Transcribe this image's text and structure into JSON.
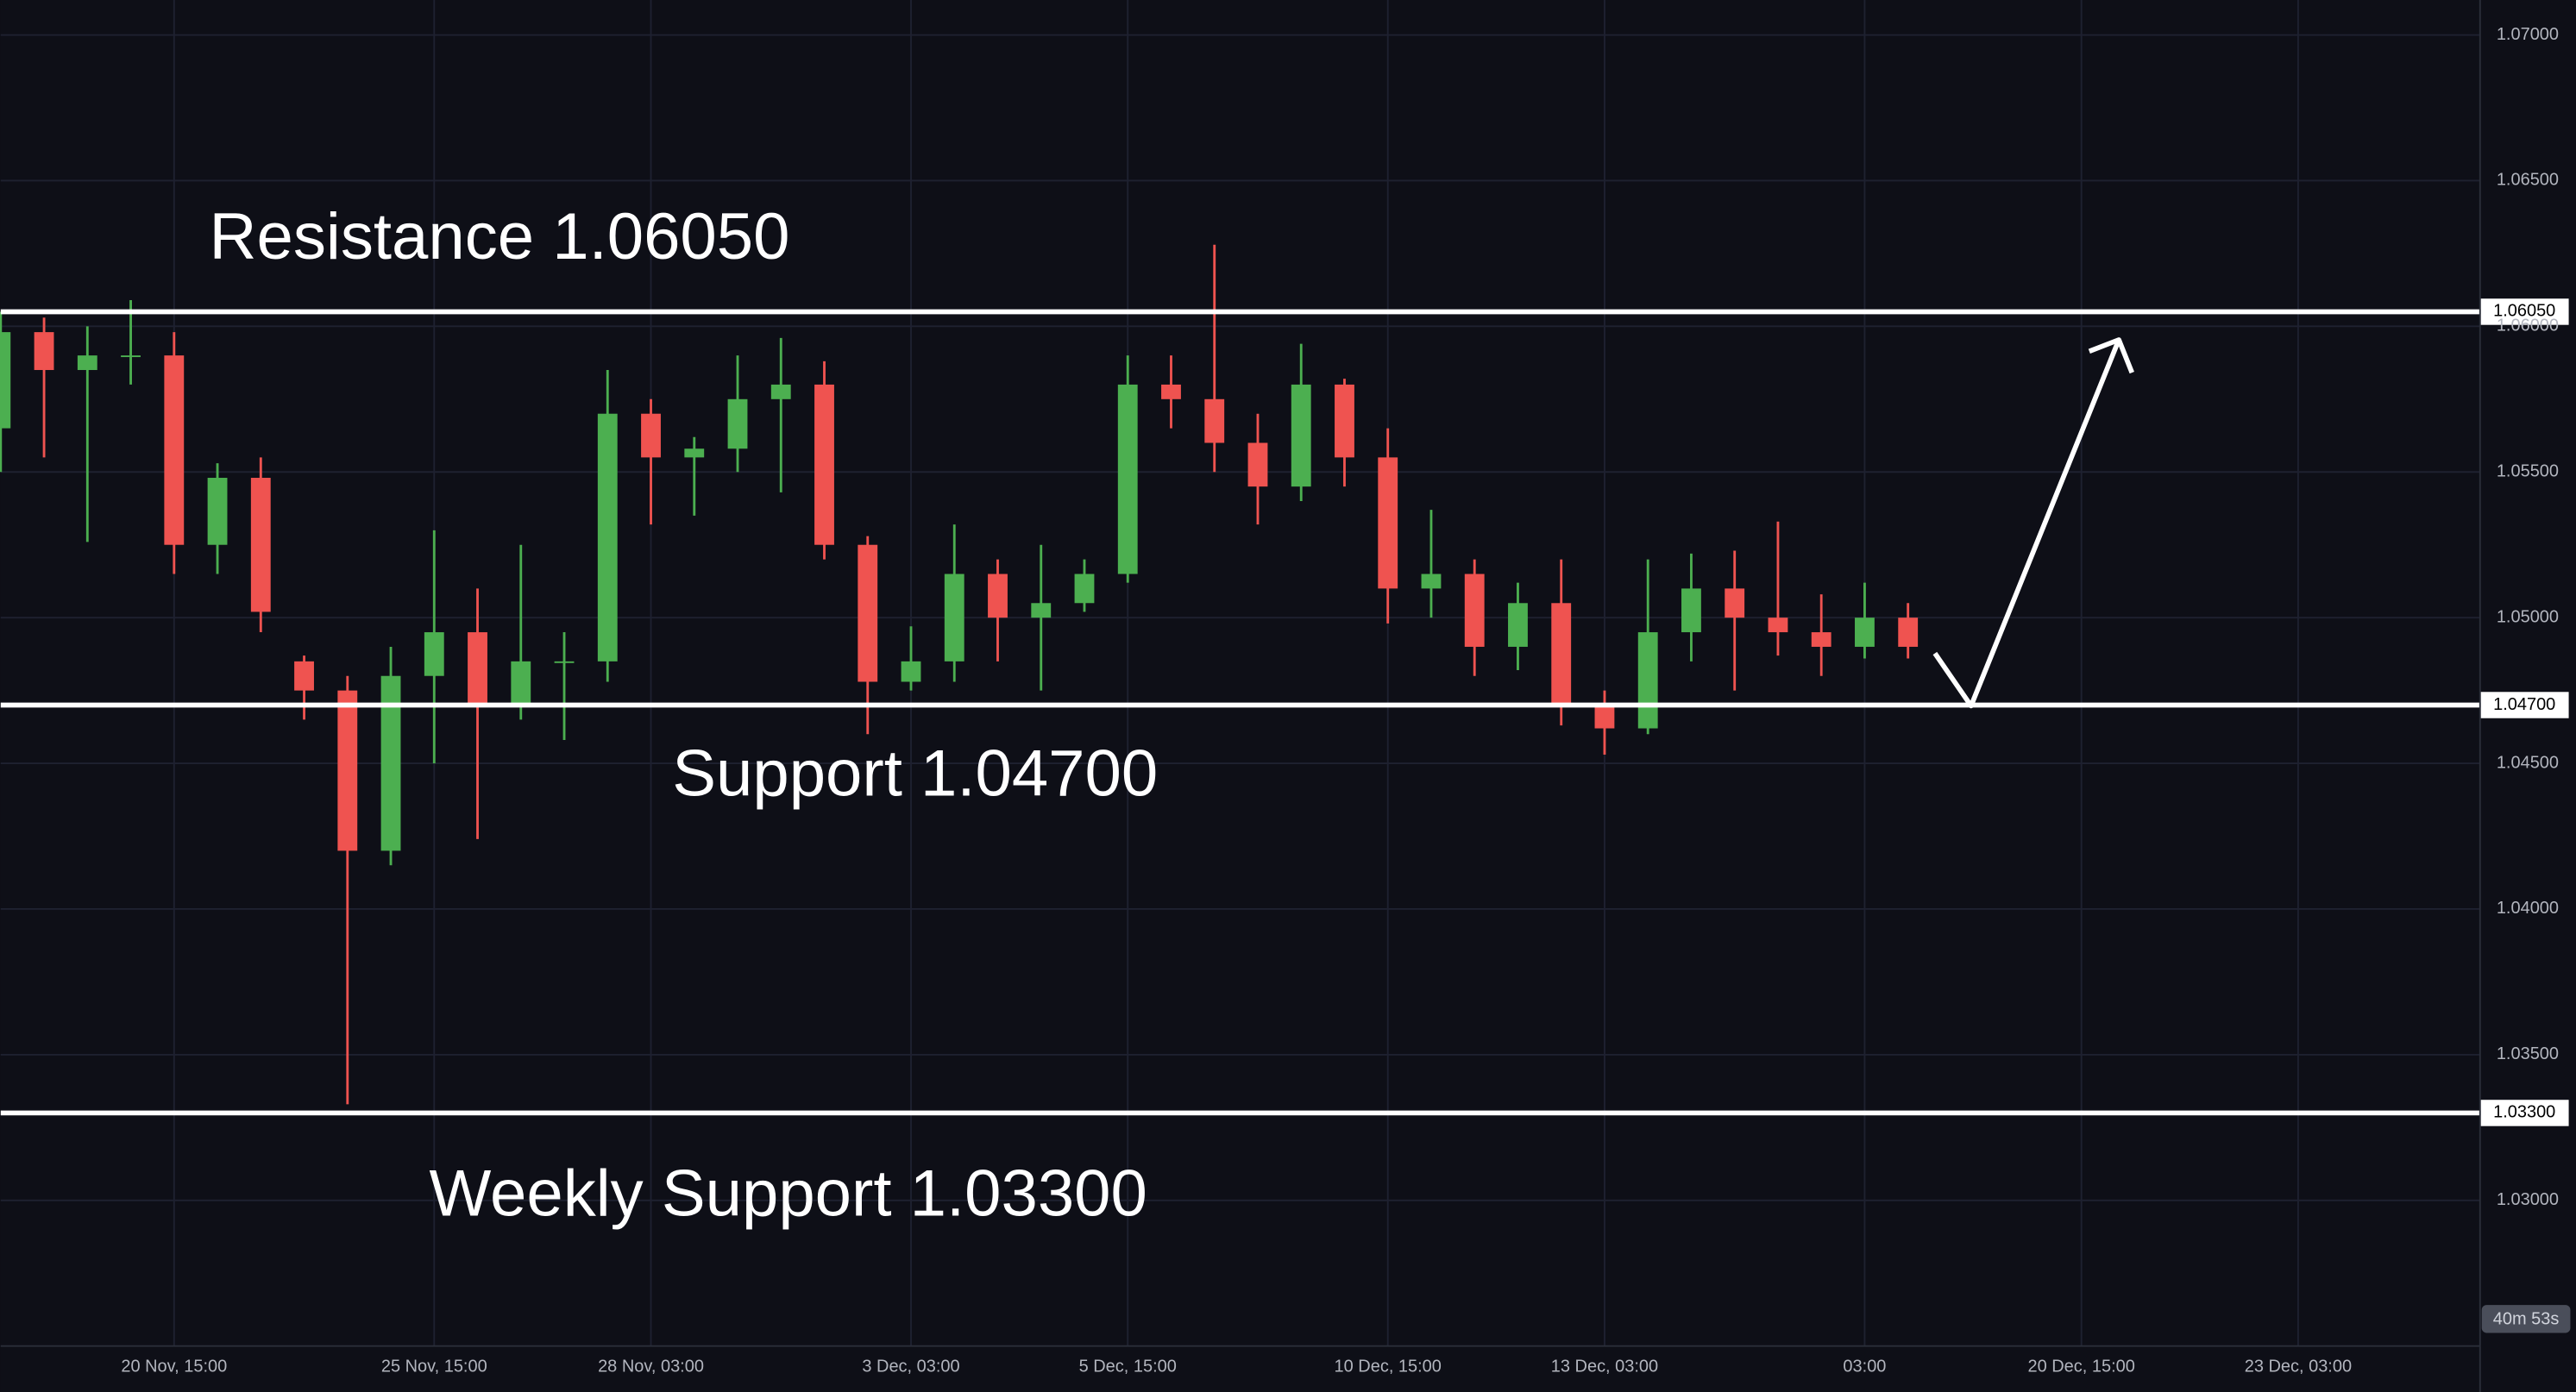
{
  "chart_data": {
    "type": "candlestick",
    "categories": [
      null,
      null,
      null,
      null,
      "20 Nov, 15:00",
      null,
      null,
      null,
      null,
      null,
      "25 Nov, 15:00",
      null,
      null,
      null,
      null,
      "28 Nov, 03:00",
      null,
      null,
      null,
      null,
      null,
      "3 Dec, 03:00",
      null,
      null,
      null,
      null,
      "5 Dec, 15:00",
      null,
      null,
      null,
      null,
      null,
      "10 Dec, 15:00",
      null,
      null,
      null,
      null,
      "13 Dec, 03:00",
      null,
      null,
      null,
      null,
      null,
      "03:00",
      null,
      null,
      null,
      null,
      "20 Dec, 15:00",
      null,
      null,
      null,
      null,
      "23 Dec, 03:00",
      null,
      null,
      null,
      null
    ],
    "open": [
      1.0565,
      1.0598,
      1.0585,
      1.059,
      1.059,
      1.0525,
      1.0548,
      1.0485,
      1.0475,
      1.042,
      1.048,
      1.0495,
      1.047,
      1.0485,
      1.0485,
      1.057,
      1.0555,
      1.0558,
      1.0575,
      1.058,
      1.0525,
      1.0478,
      1.0485,
      1.0515,
      1.05,
      1.0505,
      1.0515,
      1.058,
      1.0575,
      1.056,
      1.0545,
      1.058,
      1.0555,
      1.051,
      1.0515,
      1.049,
      1.0505,
      1.047,
      1.0462,
      1.0495,
      1.051,
      1.05,
      1.0495,
      1.049,
      1.05,
      null,
      null,
      null,
      null,
      null,
      null,
      null,
      null,
      null,
      null,
      null,
      null,
      null
    ],
    "high": [
      1.0605,
      1.0603,
      1.06,
      1.0609,
      1.0598,
      1.0553,
      1.0555,
      1.0487,
      1.048,
      1.049,
      1.053,
      1.051,
      1.0525,
      1.0495,
      1.0585,
      1.0575,
      1.0562,
      1.059,
      1.0596,
      1.0588,
      1.0528,
      1.0497,
      1.0532,
      1.052,
      1.0525,
      1.052,
      1.059,
      1.059,
      1.0628,
      1.057,
      1.0594,
      1.0582,
      1.0565,
      1.0537,
      1.052,
      1.0512,
      1.052,
      1.0475,
      1.052,
      1.0522,
      1.0523,
      1.0533,
      1.0508,
      1.0512,
      1.0505,
      null,
      null,
      null,
      null,
      null,
      null,
      null,
      null,
      null,
      null,
      null,
      null,
      null
    ],
    "low": [
      1.055,
      1.0555,
      1.0526,
      1.058,
      1.0515,
      1.0515,
      1.0495,
      1.0465,
      1.0333,
      1.0415,
      1.045,
      1.0424,
      1.0465,
      1.0458,
      1.0478,
      1.0532,
      1.0535,
      1.055,
      1.0543,
      1.052,
      1.046,
      1.0475,
      1.0478,
      1.0485,
      1.0475,
      1.0502,
      1.0512,
      1.0565,
      1.055,
      1.0532,
      1.054,
      1.0545,
      1.0498,
      1.05,
      1.048,
      1.0482,
      1.0463,
      1.0453,
      1.046,
      1.0485,
      1.0475,
      1.0487,
      1.048,
      1.0486,
      1.0486,
      null,
      null,
      null,
      null,
      null,
      null,
      null,
      null,
      null,
      null,
      null,
      null,
      null
    ],
    "close": [
      1.0598,
      1.0585,
      1.059,
      1.059,
      1.0525,
      1.0548,
      1.0502,
      1.0475,
      1.042,
      1.048,
      1.0495,
      1.047,
      1.0485,
      1.0485,
      1.057,
      1.0555,
      1.0558,
      1.0575,
      1.058,
      1.0525,
      1.0478,
      1.0485,
      1.0515,
      1.05,
      1.0505,
      1.0515,
      1.058,
      1.0575,
      1.056,
      1.0545,
      1.058,
      1.0555,
      1.051,
      1.0515,
      1.049,
      1.0505,
      1.047,
      1.0462,
      1.0495,
      1.051,
      1.05,
      1.0495,
      1.049,
      1.05,
      1.049,
      null,
      null,
      null,
      null,
      null,
      null,
      null,
      null,
      null,
      null,
      null,
      null,
      null
    ],
    "up_color": "#4caf50",
    "down_color": "#ef5350",
    "ylim": [
      1.025,
      1.0712
    ],
    "yticks": [
      {
        "value": 1.03,
        "label": "1.03000"
      },
      {
        "value": 1.035,
        "label": "1.03500"
      },
      {
        "value": 1.04,
        "label": "1.04000"
      },
      {
        "value": 1.045,
        "label": "1.04500"
      },
      {
        "value": 1.05,
        "label": "1.05000"
      },
      {
        "value": 1.055,
        "label": "1.05500"
      },
      {
        "value": 1.06,
        "label": "1.06000"
      },
      {
        "value": 1.065,
        "label": "1.06500"
      },
      {
        "value": 1.07,
        "label": "1.07000"
      }
    ],
    "grid": true,
    "levels": [
      {
        "value": 1.0605,
        "label": "1.06050",
        "annotation": "Resistance 1.06050"
      },
      {
        "value": 1.047,
        "label": "1.04700",
        "annotation": "Support 1.04700"
      },
      {
        "value": 1.033,
        "label": "1.03300",
        "annotation": "Weekly Support 1.03300"
      }
    ],
    "countdown": "40m 53s"
  }
}
